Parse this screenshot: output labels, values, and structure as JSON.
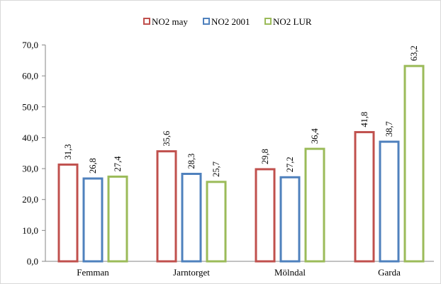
{
  "chart_data": {
    "type": "bar",
    "title": "",
    "xlabel": "",
    "ylabel": "",
    "categories": [
      "Femman",
      "Jarntorget",
      "Mölndal",
      "Garda"
    ],
    "series": [
      {
        "name": "NO2 may",
        "color": "#c0504d",
        "values": [
          31.3,
          35.6,
          29.8,
          41.8
        ],
        "labels": [
          "31,3",
          "35,6",
          "29,8",
          "41,8"
        ]
      },
      {
        "name": "NO2 2001",
        "color": "#4f81bd",
        "values": [
          26.8,
          28.3,
          27.2,
          38.7
        ],
        "labels": [
          "26,8",
          "28,3",
          "27,2",
          "38,7"
        ]
      },
      {
        "name": "NO2 LUR",
        "color": "#9bbb59",
        "values": [
          27.4,
          25.7,
          36.4,
          63.2
        ],
        "labels": [
          "27,4",
          "25,7",
          "36,4",
          "63,2"
        ]
      }
    ],
    "ylim": [
      0,
      70
    ],
    "yticks": [
      "0,0",
      "10,0",
      "20,0",
      "30,0",
      "40,0",
      "50,0",
      "60,0",
      "70,0"
    ],
    "ytick_values": [
      0,
      10,
      20,
      30,
      40,
      50,
      60,
      70
    ],
    "legend_position": "top-center",
    "grid": false,
    "bar_style": "outlined"
  }
}
